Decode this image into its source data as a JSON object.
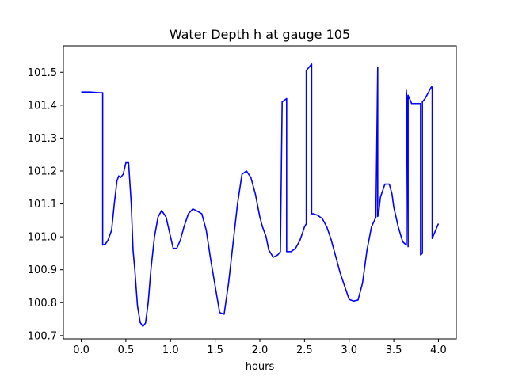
{
  "chart_data": {
    "type": "line",
    "title": "Water Depth h at gauge 105",
    "xlabel": "hours",
    "ylabel": "",
    "xlim": [
      -0.2,
      4.2
    ],
    "ylim": [
      100.69,
      101.58
    ],
    "xticks": [
      0.0,
      0.5,
      1.0,
      1.5,
      2.0,
      2.5,
      3.0,
      3.5,
      4.0
    ],
    "xtick_labels": [
      "0.0",
      "0.5",
      "1.0",
      "1.5",
      "2.0",
      "2.5",
      "3.0",
      "3.5",
      "4.0"
    ],
    "yticks": [
      100.7,
      100.8,
      100.9,
      101.0,
      101.1,
      101.2,
      101.3,
      101.4,
      101.5
    ],
    "ytick_labels": [
      "100.7",
      "100.8",
      "100.9",
      "101.0",
      "101.1",
      "101.2",
      "101.3",
      "101.4",
      "101.5"
    ],
    "grid": false,
    "series": [
      {
        "color": "#0000ff",
        "x": [
          0.0,
          0.1,
          0.2,
          0.24,
          0.24,
          0.27,
          0.3,
          0.34,
          0.37,
          0.4,
          0.42,
          0.44,
          0.47,
          0.5,
          0.53,
          0.56,
          0.58,
          0.6,
          0.63,
          0.66,
          0.69,
          0.72,
          0.75,
          0.78,
          0.82,
          0.86,
          0.9,
          0.95,
          1.0,
          1.03,
          1.07,
          1.11,
          1.15,
          1.2,
          1.25,
          1.3,
          1.35,
          1.4,
          1.45,
          1.5,
          1.55,
          1.6,
          1.65,
          1.7,
          1.75,
          1.8,
          1.85,
          1.9,
          1.95,
          2.0,
          2.03,
          2.07,
          2.1,
          2.15,
          2.2,
          2.23,
          2.25,
          2.25,
          2.3,
          2.3,
          2.35,
          2.4,
          2.45,
          2.5,
          2.52,
          2.52,
          2.58,
          2.58,
          2.6,
          2.65,
          2.7,
          2.75,
          2.8,
          2.85,
          2.9,
          2.95,
          3.0,
          3.05,
          3.1,
          3.15,
          3.2,
          3.25,
          3.3,
          3.32,
          3.32,
          3.33,
          3.35,
          3.4,
          3.45,
          3.48,
          3.5,
          3.55,
          3.6,
          3.64,
          3.64,
          3.65,
          3.66,
          3.66,
          3.7,
          3.75,
          3.8,
          3.8,
          3.82,
          3.82,
          3.85,
          3.92,
          3.93,
          3.93,
          4.0
        ],
        "y": [
          101.44,
          101.44,
          101.438,
          101.438,
          100.975,
          100.978,
          100.99,
          101.02,
          101.1,
          101.17,
          101.185,
          101.18,
          101.19,
          101.225,
          101.225,
          101.1,
          100.96,
          100.9,
          100.79,
          100.74,
          100.728,
          100.738,
          100.8,
          100.9,
          101.0,
          101.06,
          101.08,
          101.06,
          101.0,
          100.965,
          100.965,
          100.99,
          101.03,
          101.07,
          101.085,
          101.078,
          101.07,
          101.02,
          100.93,
          100.85,
          100.77,
          100.765,
          100.86,
          100.98,
          101.1,
          101.19,
          101.2,
          101.18,
          101.13,
          101.06,
          101.03,
          101.0,
          100.96,
          100.938,
          100.945,
          100.955,
          101.41,
          101.41,
          101.42,
          100.955,
          100.955,
          100.965,
          100.99,
          101.03,
          101.04,
          101.505,
          101.525,
          101.07,
          101.07,
          101.065,
          101.055,
          101.03,
          100.99,
          100.94,
          100.89,
          100.85,
          100.81,
          100.805,
          100.808,
          100.86,
          100.96,
          101.03,
          101.06,
          101.515,
          101.062,
          101.07,
          101.12,
          101.16,
          101.16,
          101.13,
          101.09,
          101.03,
          100.985,
          100.975,
          101.445,
          101.41,
          100.97,
          101.43,
          101.405,
          101.405,
          101.405,
          100.945,
          100.95,
          101.41,
          101.42,
          101.455,
          101.455,
          100.995,
          101.04
        ]
      }
    ]
  }
}
